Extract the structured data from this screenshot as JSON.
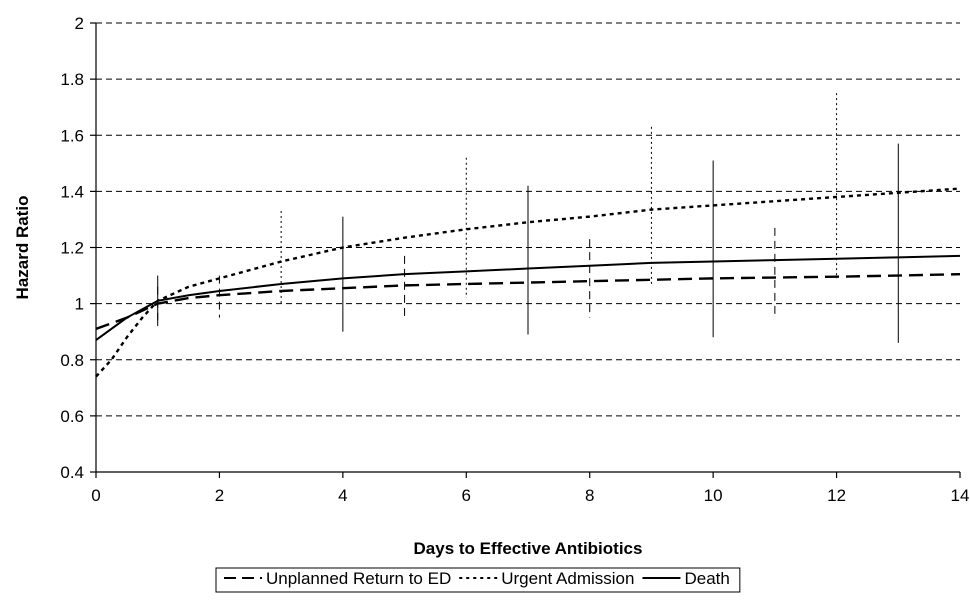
{
  "chart_data": {
    "type": "line",
    "xlabel": "Days to Effective Antibiotics",
    "ylabel": "Hazard Ratio",
    "xlim": [
      0,
      14
    ],
    "ylim": [
      0.4,
      2
    ],
    "xticks": [
      "0",
      "2",
      "4",
      "6",
      "8",
      "10",
      "12",
      "14"
    ],
    "yticks": [
      "0.4",
      "0.6",
      "0.8",
      "1",
      "1.2",
      "1.4",
      "1.6",
      "1.8",
      "2"
    ],
    "grid": "horizontal-dashed",
    "legend_position": "bottom",
    "series": [
      {
        "name": "Unplanned Return to ED",
        "line_style": "long-dash",
        "x": [
          0,
          0.5,
          1,
          1.5,
          2,
          3,
          4,
          5,
          6,
          7,
          8,
          9,
          10,
          11,
          12,
          13,
          14
        ],
        "y": [
          0.91,
          0.95,
          1.0,
          1.02,
          1.03,
          1.045,
          1.055,
          1.065,
          1.07,
          1.075,
          1.08,
          1.085,
          1.09,
          1.093,
          1.096,
          1.1,
          1.105
        ],
        "error_bars": [
          {
            "x": 1,
            "low": 0.94,
            "high": 1.06
          },
          {
            "x": 2,
            "low": 0.95,
            "high": 1.1
          },
          {
            "x": 5,
            "low": 0.95,
            "high": 1.17
          },
          {
            "x": 8,
            "low": 0.95,
            "high": 1.23
          },
          {
            "x": 11,
            "low": 0.95,
            "high": 1.27
          }
        ]
      },
      {
        "name": "Urgent Admission",
        "line_style": "dotted",
        "x": [
          0,
          0.25,
          0.5,
          0.75,
          1,
          1.5,
          2,
          3,
          4,
          5,
          6,
          7,
          8,
          9,
          10,
          11,
          12,
          13,
          14
        ],
        "y": [
          0.74,
          0.8,
          0.88,
          0.95,
          1.01,
          1.06,
          1.09,
          1.15,
          1.2,
          1.235,
          1.265,
          1.29,
          1.31,
          1.335,
          1.35,
          1.365,
          1.38,
          1.395,
          1.41
        ],
        "error_bars": [
          {
            "x": 3,
            "low": 1.0,
            "high": 1.33
          },
          {
            "x": 6,
            "low": 1.02,
            "high": 1.52
          },
          {
            "x": 9,
            "low": 1.06,
            "high": 1.63
          },
          {
            "x": 12,
            "low": 1.09,
            "high": 1.75
          }
        ]
      },
      {
        "name": "Death",
        "line_style": "solid",
        "x": [
          0,
          0.5,
          1,
          1.5,
          2,
          3,
          4,
          5,
          6,
          7,
          8,
          9,
          10,
          11,
          12,
          13,
          14
        ],
        "y": [
          0.87,
          0.95,
          1.01,
          1.03,
          1.045,
          1.07,
          1.09,
          1.105,
          1.115,
          1.125,
          1.135,
          1.145,
          1.15,
          1.155,
          1.16,
          1.165,
          1.17
        ],
        "error_bars": [
          {
            "x": 1,
            "low": 0.92,
            "high": 1.1
          },
          {
            "x": 4,
            "low": 0.9,
            "high": 1.31
          },
          {
            "x": 7,
            "low": 0.89,
            "high": 1.42
          },
          {
            "x": 10,
            "low": 0.88,
            "high": 1.51
          },
          {
            "x": 13,
            "low": 0.86,
            "high": 1.57
          }
        ]
      }
    ]
  }
}
